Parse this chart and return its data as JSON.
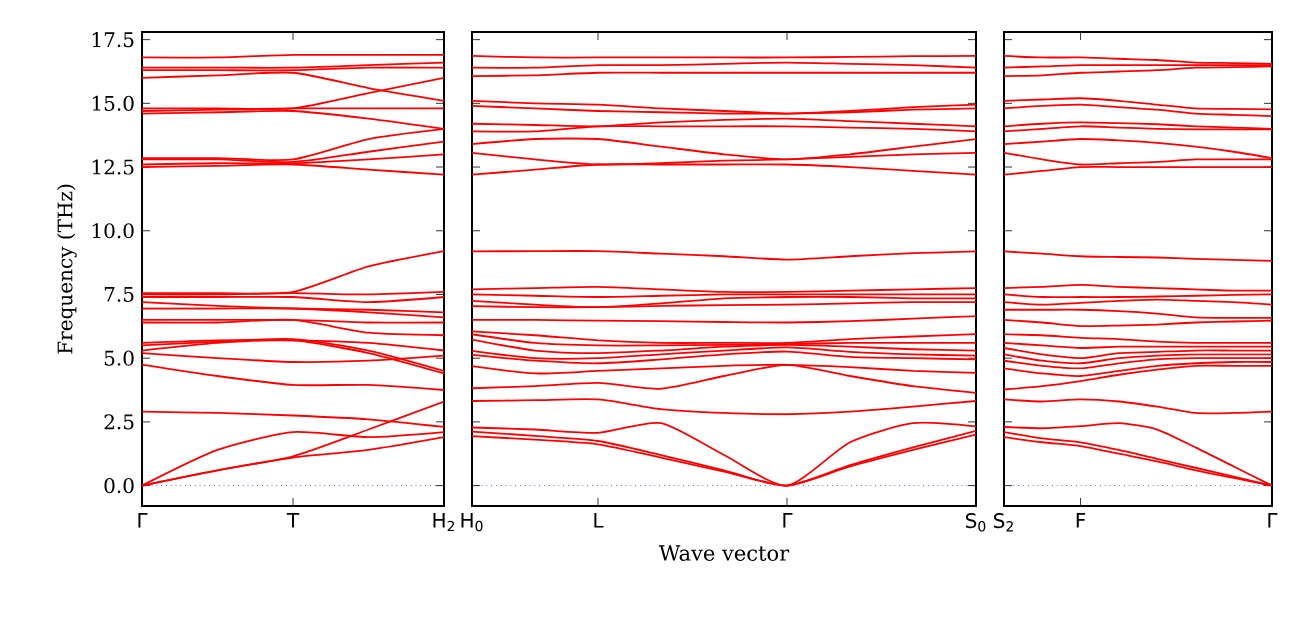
{
  "chart_data": [
    {
      "type": "line",
      "ylabel": "Frequency (THz)",
      "categories": [
        "Γ",
        null,
        "T",
        null,
        "H$_{2}$"
      ],
      "ylim": [
        -0.8,
        17.8
      ],
      "yticks": [
        {
          "value": 0,
          "label": "0.0"
        },
        {
          "value": 2.5,
          "label": "2.5"
        },
        {
          "value": 5,
          "label": "5.0"
        },
        {
          "value": 7.5,
          "label": "7.5"
        },
        {
          "value": 10,
          "label": "10.0"
        },
        {
          "value": 12.5,
          "label": "12.5"
        },
        {
          "value": 15,
          "label": "15.0"
        },
        {
          "value": 17.5,
          "label": "17.5"
        }
      ],
      "marker": "none",
      "line_style": "solid",
      "ref_lines": [
        {
          "axis": "y",
          "value": 0,
          "color": "#0000ff",
          "line_style": "dotted"
        }
      ],
      "series": [
        {
          "color": "#ff0000",
          "values": [
            0,
            0.6,
            1.1,
            1.4,
            1.9
          ]
        },
        {
          "color": "#ff0000",
          "values": [
            0,
            0.6,
            1.15,
            2.2,
            3.3
          ]
        },
        {
          "color": "#ff0000",
          "values": [
            0,
            1.4,
            2.1,
            1.9,
            2.1
          ]
        },
        {
          "color": "#ff0000",
          "values": [
            2.9,
            2.85,
            2.75,
            2.6,
            2.3
          ]
        },
        {
          "color": "#ff0000",
          "values": [
            4.75,
            4.3,
            3.95,
            3.95,
            3.75
          ]
        },
        {
          "color": "#ff0000",
          "values": [
            5.2,
            5.0,
            4.85,
            4.9,
            5.1
          ]
        },
        {
          "color": "#ff0000",
          "values": [
            5.3,
            5.6,
            5.7,
            5.2,
            4.4
          ]
        },
        {
          "color": "#ff0000",
          "values": [
            5.5,
            5.65,
            5.75,
            5.3,
            4.5
          ]
        },
        {
          "color": "#ff0000",
          "values": [
            5.6,
            5.7,
            5.7,
            5.6,
            5.3
          ]
        },
        {
          "color": "#ff0000",
          "values": [
            6.4,
            6.4,
            6.5,
            6.0,
            5.9
          ]
        },
        {
          "color": "#ff0000",
          "values": [
            6.5,
            6.5,
            6.5,
            6.4,
            6.4
          ]
        },
        {
          "color": "#ff0000",
          "values": [
            6.95,
            6.95,
            6.95,
            6.8,
            6.6
          ]
        },
        {
          "color": "#ff0000",
          "values": [
            7.2,
            7.05,
            6.95,
            6.9,
            6.8
          ]
        },
        {
          "color": "#ff0000",
          "values": [
            7.4,
            7.4,
            7.4,
            7.2,
            7.4
          ]
        },
        {
          "color": "#ff0000",
          "values": [
            7.5,
            7.5,
            7.55,
            7.5,
            7.6
          ]
        },
        {
          "color": "#ff0000",
          "values": [
            7.55,
            7.55,
            7.6,
            8.6,
            9.2
          ]
        },
        {
          "color": "#ff0000",
          "values": [
            12.5,
            12.55,
            12.6,
            12.4,
            12.2
          ]
        },
        {
          "color": "#ff0000",
          "values": [
            12.6,
            12.65,
            12.65,
            12.8,
            13.0
          ]
        },
        {
          "color": "#ff0000",
          "values": [
            12.8,
            12.8,
            12.7,
            13.1,
            13.5
          ]
        },
        {
          "color": "#ff0000",
          "values": [
            12.85,
            12.85,
            12.8,
            13.6,
            14.0
          ]
        },
        {
          "color": "#ff0000",
          "values": [
            14.6,
            14.65,
            14.7,
            14.4,
            14.0
          ]
        },
        {
          "color": "#ff0000",
          "values": [
            14.7,
            14.75,
            14.8,
            14.8,
            14.8
          ]
        },
        {
          "color": "#ff0000",
          "values": [
            14.8,
            14.8,
            14.8,
            15.4,
            16.0
          ]
        },
        {
          "color": "#ff0000",
          "values": [
            16.0,
            16.1,
            16.2,
            15.6,
            15.1
          ]
        },
        {
          "color": "#ff0000",
          "values": [
            16.3,
            16.3,
            16.3,
            16.4,
            16.4
          ]
        },
        {
          "color": "#ff0000",
          "values": [
            16.4,
            16.4,
            16.4,
            16.5,
            16.6
          ]
        },
        {
          "color": "#ff0000",
          "values": [
            16.8,
            16.8,
            16.9,
            16.9,
            16.9
          ]
        }
      ]
    },
    {
      "type": "line",
      "xlabel": "Wave vector",
      "categories": [
        "H$_{0}$",
        null,
        "L",
        null,
        null,
        "Γ",
        null,
        null,
        "S$_{0}$"
      ],
      "ylim": [
        -0.8,
        17.8
      ],
      "yticks": [
        {
          "value": 0,
          "label": null
        },
        {
          "value": 2.5,
          "label": null
        },
        {
          "value": 5,
          "label": null
        },
        {
          "value": 7.5,
          "label": null
        },
        {
          "value": 10,
          "label": null
        },
        {
          "value": 12.5,
          "label": null
        },
        {
          "value": 15,
          "label": null
        },
        {
          "value": 17.5,
          "label": null
        }
      ],
      "tick_labels": "x",
      "marker": "none",
      "line_style": "solid",
      "ref_lines": [
        {
          "axis": "y",
          "value": 0,
          "color": "#0000ff",
          "line_style": "dotted"
        }
      ],
      "series": [
        {
          "color": "#ff0000",
          "values": [
            1.94,
            1.8,
            1.62,
            1.1,
            0.55,
            0,
            0.75,
            1.4,
            2.0
          ]
        },
        {
          "color": "#ff0000",
          "values": [
            2.12,
            1.95,
            1.75,
            1.2,
            0.6,
            0,
            0.8,
            1.5,
            2.15
          ]
        },
        {
          "color": "#ff0000",
          "values": [
            2.28,
            2.2,
            2.07,
            2.45,
            1.2,
            0,
            1.7,
            2.45,
            2.32
          ]
        },
        {
          "color": "#ff0000",
          "values": [
            3.32,
            3.35,
            3.38,
            3.0,
            2.85,
            2.8,
            2.9,
            3.1,
            3.32
          ]
        },
        {
          "color": "#ff0000",
          "values": [
            3.82,
            3.9,
            4.03,
            3.8,
            4.3,
            4.74,
            4.3,
            3.9,
            3.64
          ]
        },
        {
          "color": "#ff0000",
          "values": [
            4.69,
            4.4,
            4.5,
            4.6,
            4.7,
            4.74,
            4.65,
            4.5,
            4.42
          ]
        },
        {
          "color": "#ff0000",
          "values": [
            5.13,
            4.9,
            4.8,
            4.95,
            5.15,
            5.26,
            5.05,
            5.0,
            4.95
          ]
        },
        {
          "color": "#ff0000",
          "values": [
            5.29,
            5.0,
            5.0,
            5.15,
            5.3,
            5.42,
            5.25,
            5.15,
            5.1
          ]
        },
        {
          "color": "#ff0000",
          "values": [
            5.73,
            5.3,
            5.2,
            5.3,
            5.45,
            5.52,
            5.45,
            5.35,
            5.3
          ]
        },
        {
          "color": "#ff0000",
          "values": [
            5.94,
            5.6,
            5.5,
            5.5,
            5.52,
            5.55,
            5.6,
            5.6,
            5.6
          ]
        },
        {
          "color": "#ff0000",
          "values": [
            6.05,
            5.9,
            5.7,
            5.6,
            5.6,
            5.6,
            5.75,
            5.85,
            5.94
          ]
        },
        {
          "color": "#ff0000",
          "values": [
            6.5,
            6.5,
            6.47,
            6.45,
            6.42,
            6.4,
            6.45,
            6.55,
            6.65
          ]
        },
        {
          "color": "#ff0000",
          "values": [
            7.04,
            7.0,
            7.0,
            7.05,
            7.08,
            7.1,
            7.15,
            7.2,
            7.2
          ]
        },
        {
          "color": "#ff0000",
          "values": [
            7.25,
            7.1,
            7.0,
            7.15,
            7.35,
            7.4,
            7.4,
            7.35,
            7.35
          ]
        },
        {
          "color": "#ff0000",
          "values": [
            7.7,
            7.75,
            7.8,
            7.7,
            7.6,
            7.6,
            7.65,
            7.7,
            7.75
          ]
        },
        {
          "color": "#ff0000",
          "values": [
            7.5,
            7.45,
            7.4,
            7.45,
            7.5,
            7.5,
            7.5,
            7.5,
            7.5
          ]
        },
        {
          "color": "#ff0000",
          "values": [
            9.19,
            9.2,
            9.2,
            9.1,
            9.0,
            8.87,
            9.0,
            9.12,
            9.19
          ]
        },
        {
          "color": "#ff0000",
          "values": [
            12.2,
            12.4,
            12.6,
            12.6,
            12.6,
            12.6,
            12.5,
            12.35,
            12.2
          ]
        },
        {
          "color": "#ff0000",
          "values": [
            13.06,
            12.8,
            12.6,
            12.65,
            12.75,
            12.8,
            12.9,
            13.0,
            13.06
          ]
        },
        {
          "color": "#ff0000",
          "values": [
            13.4,
            13.6,
            13.6,
            13.3,
            13.0,
            12.8,
            13.0,
            13.3,
            13.6
          ]
        },
        {
          "color": "#ff0000",
          "values": [
            13.9,
            13.9,
            14.1,
            14.1,
            14.1,
            14.1,
            14.05,
            14.0,
            13.9
          ]
        },
        {
          "color": "#ff0000",
          "values": [
            14.2,
            14.15,
            14.1,
            14.25,
            14.35,
            14.4,
            14.3,
            14.2,
            14.1
          ]
        },
        {
          "color": "#ff0000",
          "values": [
            14.9,
            14.8,
            14.7,
            14.65,
            14.6,
            14.6,
            14.65,
            14.75,
            14.8
          ]
        },
        {
          "color": "#ff0000",
          "values": [
            15.1,
            15.0,
            14.95,
            14.8,
            14.7,
            14.6,
            14.7,
            14.85,
            14.95
          ]
        },
        {
          "color": "#ff0000",
          "values": [
            16.07,
            16.1,
            16.2,
            16.2,
            16.2,
            16.2,
            16.2,
            16.2,
            16.2
          ]
        },
        {
          "color": "#ff0000",
          "values": [
            16.4,
            16.4,
            16.5,
            16.5,
            16.55,
            16.6,
            16.55,
            16.5,
            16.4
          ]
        },
        {
          "color": "#ff0000",
          "values": [
            16.86,
            16.8,
            16.8,
            16.8,
            16.8,
            16.8,
            16.82,
            16.85,
            16.86
          ]
        }
      ]
    },
    {
      "type": "line",
      "categories": [
        "S$_{2}$",
        null,
        "F",
        null,
        null,
        null,
        null,
        "Γ"
      ],
      "ylim": [
        -0.8,
        17.8
      ],
      "yticks": [
        {
          "value": 0,
          "label": null
        },
        {
          "value": 2.5,
          "label": null
        },
        {
          "value": 5,
          "label": null
        },
        {
          "value": 7.5,
          "label": null
        },
        {
          "value": 10,
          "label": null
        },
        {
          "value": 12.5,
          "label": null
        },
        {
          "value": 15,
          "label": null
        },
        {
          "value": 17.5,
          "label": null
        }
      ],
      "tick_labels": "x",
      "marker": "none",
      "line_style": "solid",
      "ref_lines": [
        {
          "axis": "y",
          "value": 0,
          "color": "#0000ff",
          "line_style": "dotted"
        }
      ],
      "series": [
        {
          "color": "#ff0000",
          "values": [
            1.9,
            1.7,
            1.55,
            1.25,
            0.95,
            0.6,
            0.3,
            0
          ]
        },
        {
          "color": "#ff0000",
          "values": [
            2.1,
            1.85,
            1.7,
            1.4,
            1.05,
            0.7,
            0.35,
            0
          ]
        },
        {
          "color": "#ff0000",
          "values": [
            2.3,
            2.25,
            2.33,
            2.45,
            2.2,
            1.5,
            0.75,
            0
          ]
        },
        {
          "color": "#ff0000",
          "values": [
            3.38,
            3.3,
            3.38,
            3.3,
            3.1,
            2.85,
            2.85,
            2.9
          ]
        },
        {
          "color": "#ff0000",
          "values": [
            3.77,
            3.9,
            4.1,
            4.35,
            4.55,
            4.7,
            4.7,
            4.7
          ]
        },
        {
          "color": "#ff0000",
          "values": [
            4.6,
            4.4,
            4.3,
            4.5,
            4.7,
            4.8,
            4.85,
            4.85
          ]
        },
        {
          "color": "#ff0000",
          "values": [
            4.9,
            4.7,
            4.6,
            4.8,
            4.95,
            5.0,
            5.0,
            5.0
          ]
        },
        {
          "color": "#ff0000",
          "values": [
            5.15,
            4.9,
            4.8,
            5.0,
            5.1,
            5.15,
            5.15,
            5.15
          ]
        },
        {
          "color": "#ff0000",
          "values": [
            5.4,
            5.15,
            5.0,
            5.2,
            5.25,
            5.3,
            5.3,
            5.3
          ]
        },
        {
          "color": "#ff0000",
          "values": [
            5.6,
            5.5,
            5.4,
            5.45,
            5.45,
            5.45,
            5.45,
            5.45
          ]
        },
        {
          "color": "#ff0000",
          "values": [
            5.94,
            5.9,
            5.8,
            5.75,
            5.65,
            5.6,
            5.6,
            5.6
          ]
        },
        {
          "color": "#ff0000",
          "values": [
            6.5,
            6.4,
            6.26,
            6.28,
            6.32,
            6.4,
            6.44,
            6.47
          ]
        },
        {
          "color": "#ff0000",
          "values": [
            6.9,
            6.9,
            6.9,
            6.85,
            6.75,
            6.6,
            6.58,
            6.58
          ]
        },
        {
          "color": "#ff0000",
          "values": [
            7.2,
            7.1,
            7.17,
            7.25,
            7.3,
            7.25,
            7.2,
            7.1
          ]
        },
        {
          "color": "#ff0000",
          "values": [
            7.75,
            7.8,
            7.88,
            7.8,
            7.75,
            7.7,
            7.65,
            7.65
          ]
        },
        {
          "color": "#ff0000",
          "values": [
            7.5,
            7.4,
            7.4,
            7.4,
            7.42,
            7.45,
            7.48,
            7.5
          ]
        },
        {
          "color": "#ff0000",
          "values": [
            9.19,
            9.1,
            9.0,
            8.97,
            8.95,
            8.9,
            8.86,
            8.82
          ]
        },
        {
          "color": "#ff0000",
          "values": [
            12.2,
            12.35,
            12.5,
            12.5,
            12.5,
            12.5,
            12.5,
            12.5
          ]
        },
        {
          "color": "#ff0000",
          "values": [
            13.06,
            12.8,
            12.6,
            12.65,
            12.7,
            12.8,
            12.8,
            12.8
          ]
        },
        {
          "color": "#ff0000",
          "values": [
            13.4,
            13.5,
            13.6,
            13.55,
            13.45,
            13.3,
            13.1,
            12.85
          ]
        },
        {
          "color": "#ff0000",
          "values": [
            13.9,
            14.0,
            14.1,
            14.05,
            14.0,
            13.98,
            13.98,
            13.98
          ]
        },
        {
          "color": "#ff0000",
          "values": [
            14.1,
            14.2,
            14.25,
            14.22,
            14.18,
            14.1,
            14.05,
            14.0
          ]
        },
        {
          "color": "#ff0000",
          "values": [
            14.8,
            14.9,
            14.95,
            14.85,
            14.75,
            14.6,
            14.55,
            14.5
          ]
        },
        {
          "color": "#ff0000",
          "values": [
            15.1,
            15.15,
            15.2,
            15.1,
            14.95,
            14.8,
            14.78,
            14.76
          ]
        },
        {
          "color": "#ff0000",
          "values": [
            16.07,
            16.1,
            16.2,
            16.25,
            16.3,
            16.4,
            16.42,
            16.45
          ]
        },
        {
          "color": "#ff0000",
          "values": [
            16.4,
            16.45,
            16.5,
            16.5,
            16.5,
            16.5,
            16.5,
            16.5
          ]
        },
        {
          "color": "#ff0000",
          "values": [
            16.86,
            16.8,
            16.8,
            16.75,
            16.7,
            16.6,
            16.58,
            16.55
          ]
        }
      ]
    }
  ]
}
